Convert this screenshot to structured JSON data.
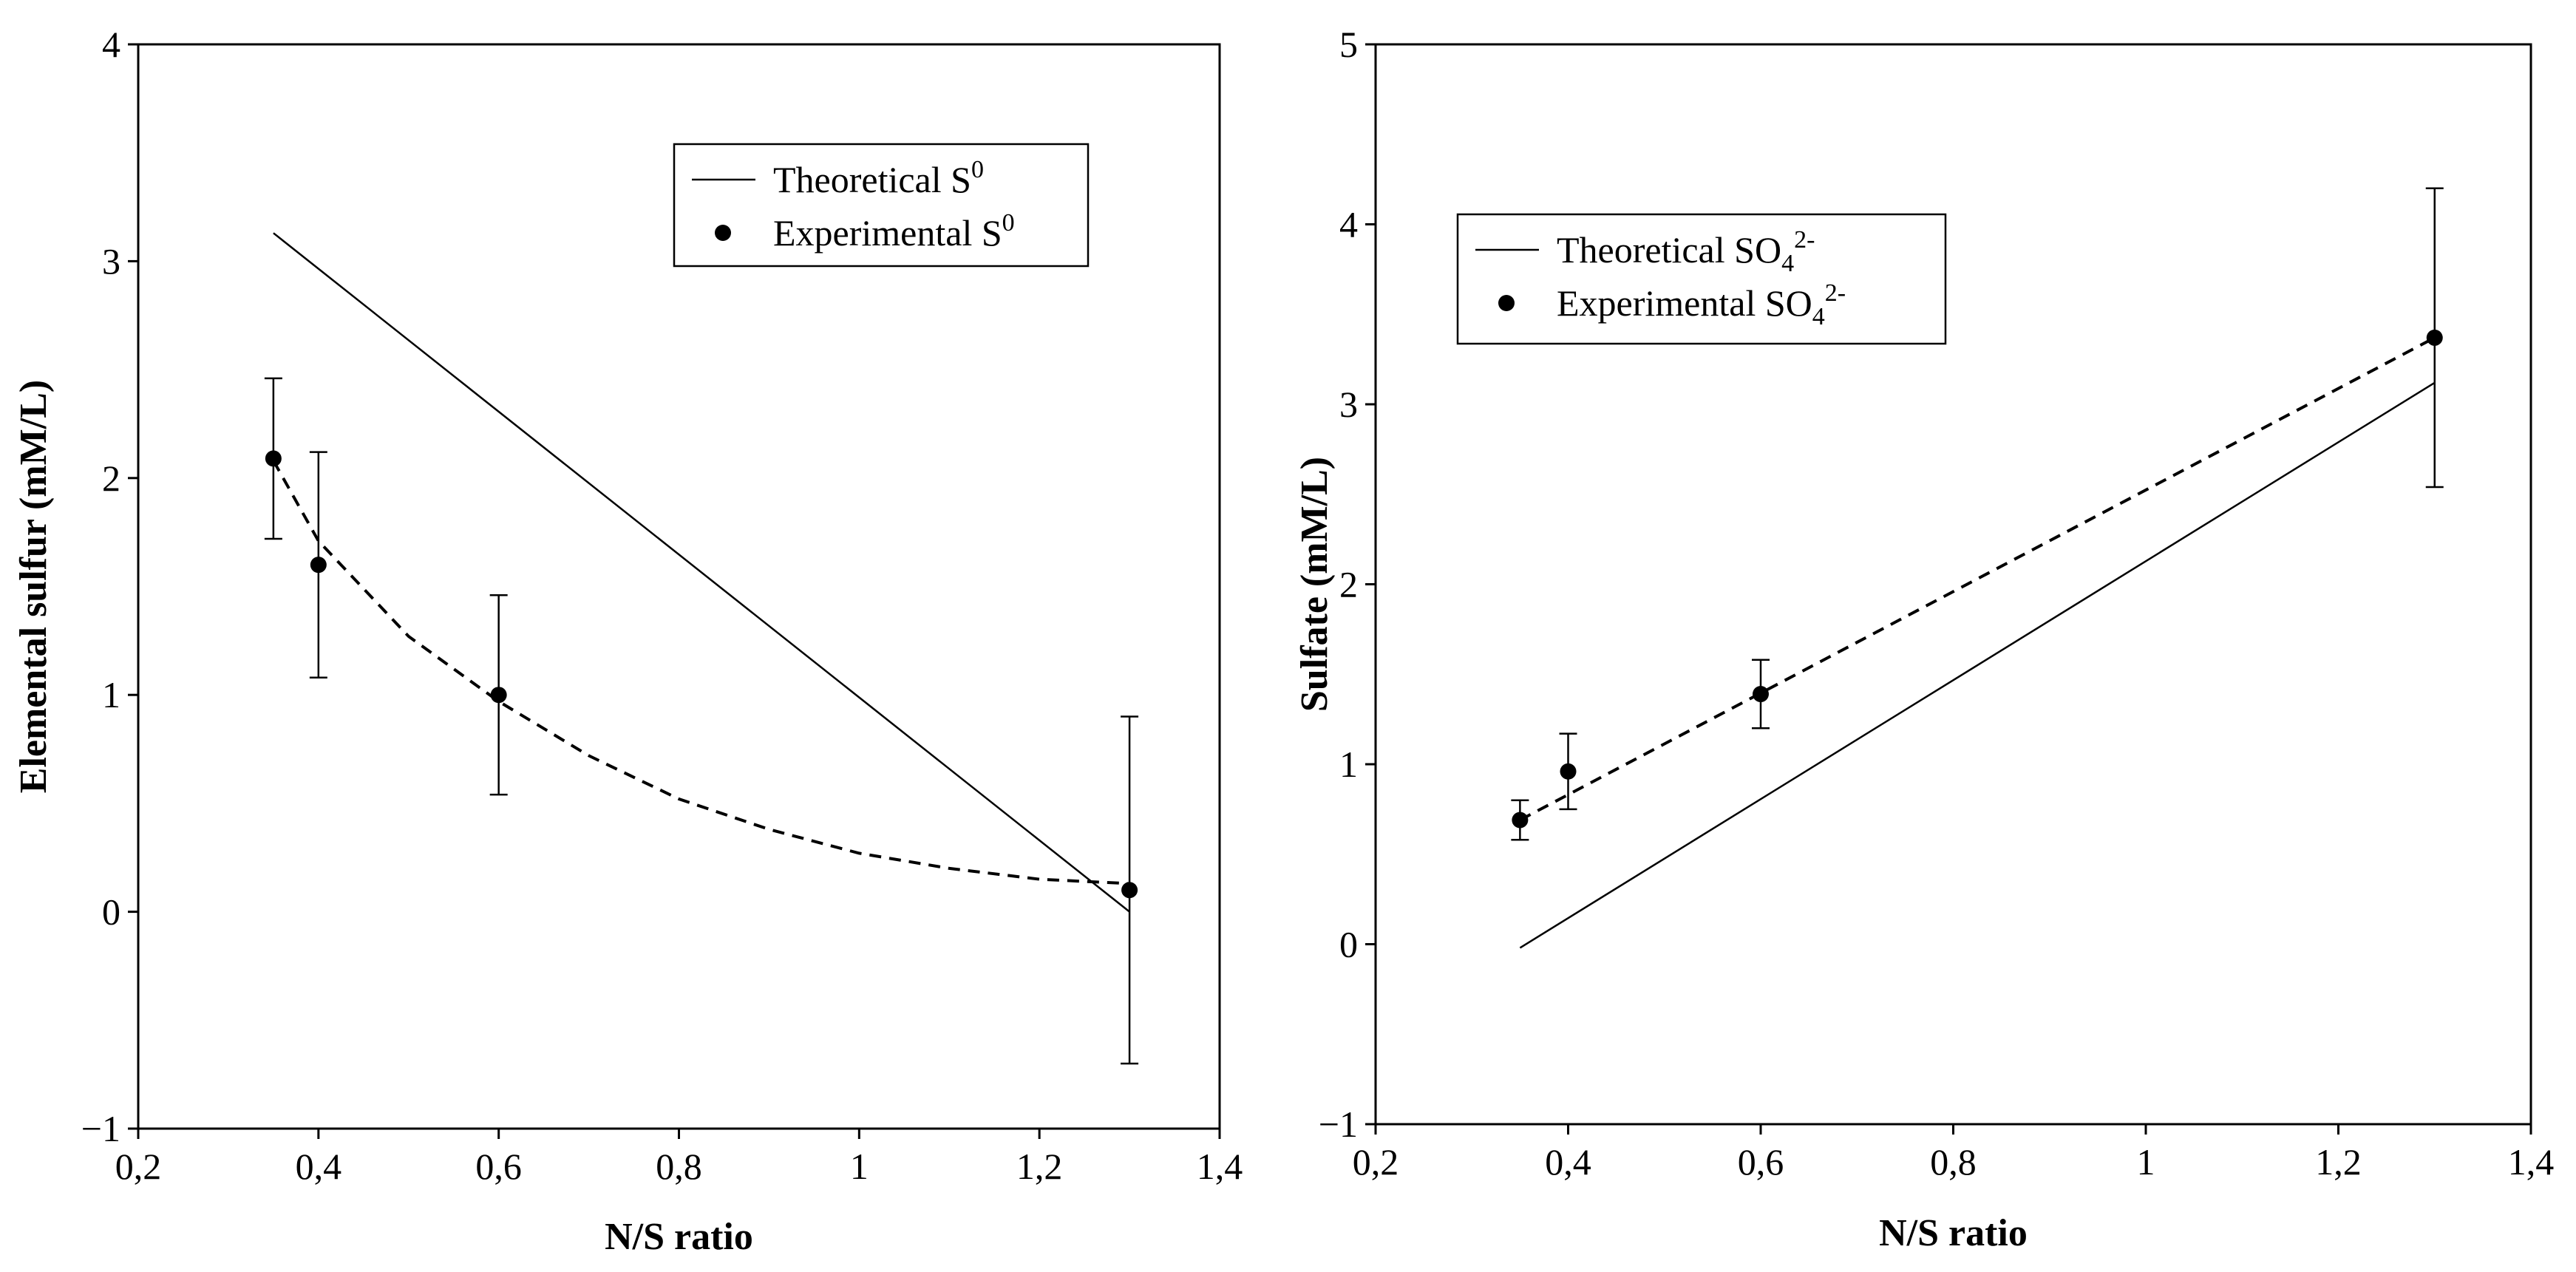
{
  "chart_data": [
    {
      "type": "line",
      "title": "",
      "xlabel": "N/S ratio",
      "ylabel": "Elemental sulfur (mM/L)",
      "xlim": [
        0.2,
        1.4
      ],
      "ylim": [
        -1,
        4
      ],
      "xticks": [
        0.2,
        0.4,
        0.6,
        0.8,
        1.0,
        1.2,
        1.4
      ],
      "xtick_labels": [
        "0,2",
        "0,4",
        "0,6",
        "0,8",
        "1",
        "1,2",
        "1,4"
      ],
      "yticks": [
        -1,
        0,
        1,
        2,
        3,
        4
      ],
      "ytick_labels": [
        "−1",
        "0",
        "1",
        "2",
        "3",
        "4"
      ],
      "grid": false,
      "legend_position": "top-right",
      "legend": [
        {
          "symbol": "line",
          "label": "Theoretical S",
          "sup": "0",
          "sub": ""
        },
        {
          "symbol": "dot",
          "label": "Experimental S",
          "sup": "0",
          "sub": ""
        }
      ],
      "series": [
        {
          "style": "solid",
          "x": [
            0.35,
            1.3
          ],
          "y": [
            3.13,
            0.0
          ]
        },
        {
          "style": "markers",
          "x": [
            0.35,
            0.4,
            0.6,
            1.3
          ],
          "y": [
            2.09,
            1.6,
            1.0,
            0.1
          ],
          "yerr": [
            0.37,
            0.52,
            0.46,
            0.8
          ]
        },
        {
          "style": "dashed",
          "x": [
            0.35,
            0.4,
            0.5,
            0.6,
            0.7,
            0.8,
            0.9,
            1.0,
            1.1,
            1.2,
            1.3
          ],
          "y": [
            2.08,
            1.71,
            1.27,
            0.97,
            0.72,
            0.52,
            0.38,
            0.27,
            0.2,
            0.15,
            0.13
          ]
        }
      ]
    },
    {
      "type": "line",
      "title": "",
      "xlabel": "N/S ratio",
      "ylabel": "Sulfate (mM/L)",
      "xlim": [
        0.2,
        1.4
      ],
      "ylim": [
        -1,
        5
      ],
      "xticks": [
        0.2,
        0.4,
        0.6,
        0.8,
        1.0,
        1.2,
        1.4
      ],
      "xtick_labels": [
        "0,2",
        "0,4",
        "0,6",
        "0,8",
        "1",
        "1,2",
        "1,4"
      ],
      "yticks": [
        -1,
        0,
        1,
        2,
        3,
        4,
        5
      ],
      "ytick_labels": [
        "−1",
        "0",
        "1",
        "2",
        "3",
        "4",
        "5"
      ],
      "grid": false,
      "legend_position": "top-left",
      "legend": [
        {
          "symbol": "line",
          "label": "Theoretical SO",
          "sub": "4",
          "sup": "2-"
        },
        {
          "symbol": "dot",
          "label": "Experimental SO",
          "sub": "4",
          "sup": "2-"
        }
      ],
      "series": [
        {
          "style": "solid",
          "x": [
            0.35,
            1.3
          ],
          "y": [
            -0.02,
            3.12
          ]
        },
        {
          "style": "markers",
          "x": [
            0.35,
            0.4,
            0.6,
            1.3
          ],
          "y": [
            0.69,
            0.96,
            1.39,
            3.37
          ],
          "yerr": [
            0.11,
            0.21,
            0.19,
            0.83
          ]
        },
        {
          "style": "dashed",
          "x": [
            0.35,
            1.3
          ],
          "y": [
            0.69,
            3.37
          ]
        }
      ]
    }
  ]
}
